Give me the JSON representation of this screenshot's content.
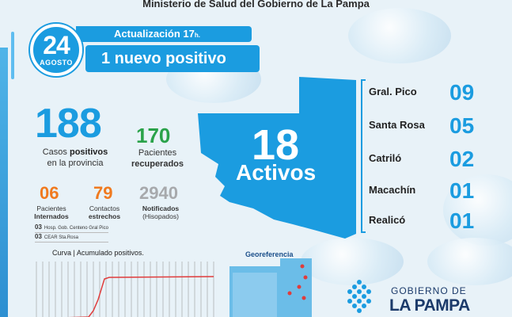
{
  "header": "Ministerio de Salud del Gobierno de La Pampa",
  "date": {
    "day": "24",
    "month": "AGOSTO"
  },
  "update": {
    "label": "Actualización 17",
    "suffix": "h."
  },
  "headline": "1 nuevo positivo",
  "positives": {
    "value": "188",
    "label_l1": "Casos",
    "label_bold": "positivos",
    "label_l2": "en la provincia"
  },
  "recovered": {
    "value": "170",
    "label_l1": "Pacientes",
    "label_l2": "recuperados"
  },
  "hospitalized": {
    "value": "06",
    "label_l1": "Pacientes",
    "label_l2": "Internados",
    "color": "#f07a1f"
  },
  "contacts": {
    "value": "79",
    "label_l1": "Contactos",
    "label_l2": "estrechos",
    "color": "#f07a1f"
  },
  "notified": {
    "value": "2940",
    "label_l1": "Notificados",
    "label_l2": "(Hisopados)",
    "color": "#a7a9ac"
  },
  "hospitals": [
    {
      "count": "03",
      "name": "Hosp. Gob. Centeno Gral Pico"
    },
    {
      "count": "03",
      "name": "CEAR Sta.Rosa"
    }
  ],
  "active": {
    "value": "18",
    "label": "Activos"
  },
  "cities": [
    {
      "name": "Gral. Pico",
      "value": "09"
    },
    {
      "name": "Santa Rosa",
      "value": "05"
    },
    {
      "name": "Catriló",
      "value": "02"
    },
    {
      "name": "Macachín",
      "value": "01"
    },
    {
      "name": "Realicó",
      "value": "01"
    }
  ],
  "chart": {
    "title": "Curva | Acumulado positivos."
  },
  "georef": {
    "title": "Georeferencia"
  },
  "gov": {
    "line1": "GOBIERNO DE",
    "line2": "LA PAMPA"
  },
  "colors": {
    "primary": "#1b9ce0",
    "green": "#2aa24a",
    "orange": "#f07a1f",
    "gray": "#a7a9ac",
    "curve": "#e03c3c"
  }
}
